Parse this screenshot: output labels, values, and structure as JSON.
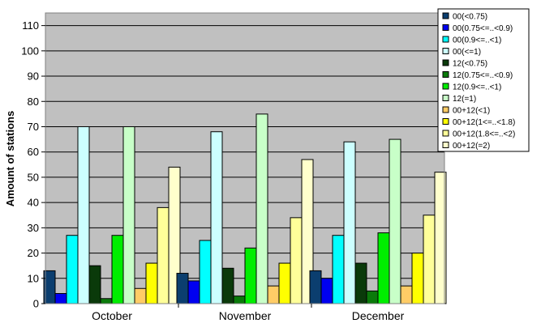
{
  "chart_data": {
    "type": "bar",
    "title": "",
    "xlabel": "",
    "ylabel": "Amount of stations",
    "ylim": [
      0,
      115
    ],
    "yticks": [
      0,
      10,
      20,
      30,
      40,
      50,
      60,
      70,
      80,
      90,
      100,
      110
    ],
    "grid": true,
    "legend_position": "top-right",
    "categories": [
      "October",
      "November",
      "December"
    ],
    "series": [
      {
        "name": "00(<0.75)",
        "color": "#0b3e6f",
        "values": [
          13,
          12,
          13
        ]
      },
      {
        "name": "00(0.75<=..<0.9)",
        "color": "#0000f0",
        "values": [
          4,
          9,
          10
        ]
      },
      {
        "name": "00(0.9<=..<1)",
        "color": "#00ffff",
        "values": [
          27,
          25,
          27
        ]
      },
      {
        "name": "00(<=1)",
        "color": "#ccffff",
        "values": [
          70,
          68,
          64
        ]
      },
      {
        "name": "12(<0.75)",
        "color": "#0a3a0a",
        "values": [
          15,
          14,
          16
        ]
      },
      {
        "name": "12(0.75<=..<0.9)",
        "color": "#0a7a0a",
        "values": [
          2,
          3,
          5
        ]
      },
      {
        "name": "12(0.9<=..<1)",
        "color": "#00ee00",
        "values": [
          27,
          22,
          28
        ]
      },
      {
        "name": "12(=1)",
        "color": "#c8ffc8",
        "values": [
          70,
          75,
          65
        ]
      },
      {
        "name": "00+12(<1)",
        "color": "#ffcc66",
        "values": [
          6,
          7,
          7
        ]
      },
      {
        "name": "00+12(1<=..<1.8)",
        "color": "#ffff00",
        "values": [
          16,
          16,
          20
        ]
      },
      {
        "name": "00+12(1.8<=..<2)",
        "color": "#ffff99",
        "values": [
          38,
          34,
          35
        ]
      },
      {
        "name": "00+12(=2)",
        "color": "#ffffcc",
        "values": [
          54,
          57,
          52
        ]
      }
    ]
  }
}
